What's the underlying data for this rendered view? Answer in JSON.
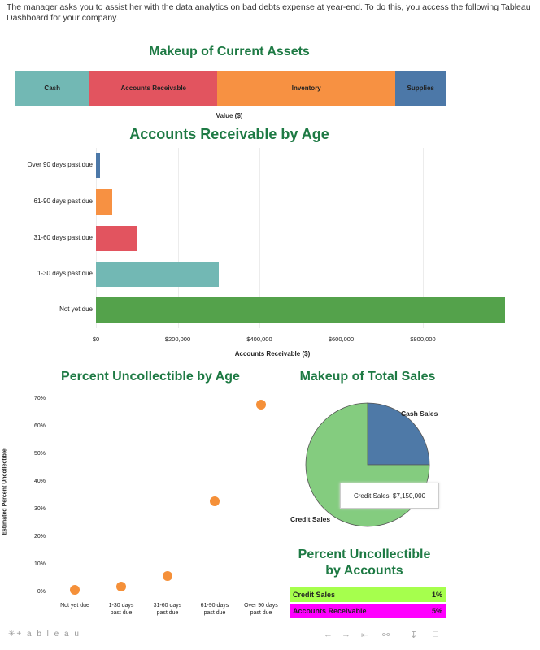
{
  "intro": "The manager asks you to assist her with the data analytics on bad debts expense at year-end. To do this, you access the following Tableau Dashboard for your company.",
  "colors": {
    "title_green": "#1e7a44",
    "cash": "#72b8b4",
    "ar": "#e2545f",
    "inventory": "#f79142",
    "supplies": "#4c78a8",
    "not_yet_due": "#54a24b",
    "dot": "#f59039",
    "pie_cash": "#4e79a7",
    "pie_credit": "#84cc7f",
    "row_credit": "#a6ff4d",
    "row_ar": "#ff00ff"
  },
  "chart_data": [
    {
      "type": "bar",
      "title": "Makeup of Current Assets",
      "xlabel": "Value ($)",
      "categories": [
        "Cash",
        "Accounts Receivable",
        "Inventory",
        "Supplies"
      ],
      "values": [
        510000,
        865000,
        1210000,
        340000
      ],
      "stacked": true,
      "orientation": "horizontal"
    },
    {
      "type": "bar",
      "title": "Accounts Receivable by Age",
      "xlabel": "Accounts Receivable ($)",
      "orientation": "horizontal",
      "categories": [
        "Over 90 days past due",
        "61-90 days past due",
        "31-60 days past due",
        "1-30 days past due",
        "Not yet due"
      ],
      "values": [
        10000,
        40000,
        100000,
        300000,
        1000000
      ],
      "xticks": [
        "$0",
        "$200,000",
        "$400,000",
        "$600,000",
        "$800,000"
      ],
      "xlim": [
        0,
        1000000
      ]
    },
    {
      "type": "scatter",
      "title": "Percent Uncollectible by Age",
      "ylabel": "Estimated Percent Uncollectible",
      "categories": [
        "Not yet due",
        "1-30 days past due",
        "31-60 days past due",
        "61-90 days past due",
        "Over 90 days past due"
      ],
      "x_labels": [
        [
          "Not yet due"
        ],
        [
          "1-30 days",
          "past due"
        ],
        [
          "31-60 days",
          "past due"
        ],
        [
          "61-90 days",
          "past due"
        ],
        [
          "Over 90 days",
          "past due"
        ]
      ],
      "values": [
        1,
        2,
        6,
        33,
        68
      ],
      "yticks": [
        "0%",
        "10%",
        "20%",
        "30%",
        "40%",
        "50%",
        "60%",
        "70%"
      ],
      "ylim": [
        0,
        70
      ]
    },
    {
      "type": "pie",
      "title": "Makeup of Total Sales",
      "categories": [
        "Cash Sales",
        "Credit Sales"
      ],
      "values": [
        25,
        75
      ],
      "tooltip": "Credit Sales: $7,150,000"
    },
    {
      "type": "table",
      "title_lines": [
        "Percent Uncollectible",
        "by Accounts"
      ],
      "rows": [
        {
          "label": "Credit Sales",
          "value": "1%"
        },
        {
          "label": "Accounts Receivable",
          "value": "5%"
        }
      ]
    }
  ],
  "footer": {
    "logo": "✳+ a b l e a u"
  }
}
